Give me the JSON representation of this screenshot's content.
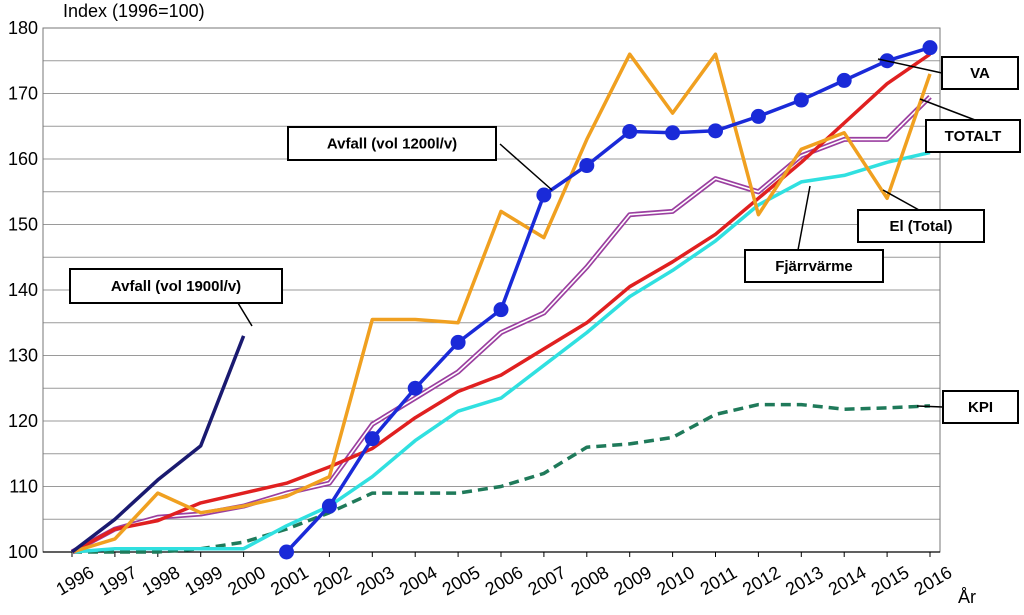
{
  "chart_data": {
    "type": "line",
    "ylabel": "Index (1996=100)",
    "xlabel": "År",
    "ylim": [
      100,
      180
    ],
    "yticks": [
      100,
      110,
      120,
      130,
      140,
      150,
      160,
      170,
      180
    ],
    "grid": true,
    "x": [
      "1996",
      "1997",
      "1998",
      "1999",
      "2000",
      "2001",
      "2002",
      "2003",
      "2004",
      "2005",
      "2006",
      "2007",
      "2008",
      "2009",
      "2010",
      "2011",
      "2012",
      "2013",
      "2014",
      "2015",
      "2016"
    ],
    "series": [
      {
        "name": "VA",
        "color": "#e02020",
        "style": "solid",
        "marker": "none",
        "values": [
          100,
          103.5,
          104.8,
          107.5,
          109,
          110.5,
          113,
          115.8,
          120.5,
          124.5,
          127,
          131,
          135,
          140.5,
          144.3,
          148.5,
          154,
          159.5,
          165.5,
          171.5,
          176
        ]
      },
      {
        "name": "TOTALT",
        "color": "#9b3fa0",
        "style": "double",
        "marker": "none",
        "values": [
          100,
          103.5,
          105.3,
          105.8,
          107,
          109,
          110.5,
          119.5,
          123.5,
          127.5,
          133.5,
          136.5,
          143.5,
          151.5,
          152,
          157,
          155,
          160.5,
          163,
          163,
          169.5
        ]
      },
      {
        "name": "El (Total)",
        "color": "#f0a020",
        "style": "solid",
        "marker": "none",
        "values": [
          100,
          102,
          109,
          106,
          107,
          108.5,
          111.5,
          135.5,
          135.5,
          135,
          152,
          148,
          163,
          176,
          167,
          176,
          151.5,
          161.5,
          164,
          154,
          173
        ]
      },
      {
        "name": "Fjärrvärme",
        "color": "#30e0e0",
        "style": "solid",
        "marker": "none",
        "values": [
          100,
          100.5,
          100.5,
          100.5,
          100.5,
          104,
          107,
          111.5,
          117,
          121.5,
          123.5,
          128.5,
          133.5,
          139,
          143,
          147.5,
          153,
          156.5,
          157.5,
          159.5,
          161
        ]
      },
      {
        "name": "KPI",
        "color": "#1f7a5a",
        "style": "dashed",
        "marker": "none",
        "values": [
          100,
          100,
          100,
          100.5,
          101.5,
          103.5,
          106,
          109,
          109,
          109,
          110,
          112,
          116,
          116.5,
          117.5,
          121,
          122.5,
          122.5,
          121.8,
          122,
          122.3
        ]
      },
      {
        "name": "Avfall (vol 1200l/v)",
        "color": "#1a2ad8",
        "style": "solid",
        "marker": "circle",
        "values": [
          null,
          null,
          null,
          null,
          null,
          100,
          107,
          117.3,
          125,
          132,
          137,
          154.5,
          159,
          164.2,
          164,
          164.3,
          166.5,
          169,
          172,
          175,
          177
        ]
      },
      {
        "name": "Avfall (vol 1900l/v)",
        "color": "#1a1a70",
        "style": "solid",
        "marker": "none",
        "values": [
          100,
          105,
          111,
          116.2,
          133,
          null,
          null,
          null,
          null,
          null,
          null,
          null,
          null,
          null,
          null,
          null,
          null,
          null,
          null,
          null,
          null
        ]
      }
    ],
    "callouts": [
      {
        "label": "VA",
        "series": 0
      },
      {
        "label": "TOTALT",
        "series": 1
      },
      {
        "label": "El (Total)",
        "series": 2
      },
      {
        "label": "Fjärrvärme",
        "series": 3
      },
      {
        "label": "KPI",
        "series": 4
      },
      {
        "label": "Avfall (vol 1200l/v)",
        "series": 5
      },
      {
        "label": "Avfall (vol 1900l/v)",
        "series": 6
      }
    ]
  }
}
